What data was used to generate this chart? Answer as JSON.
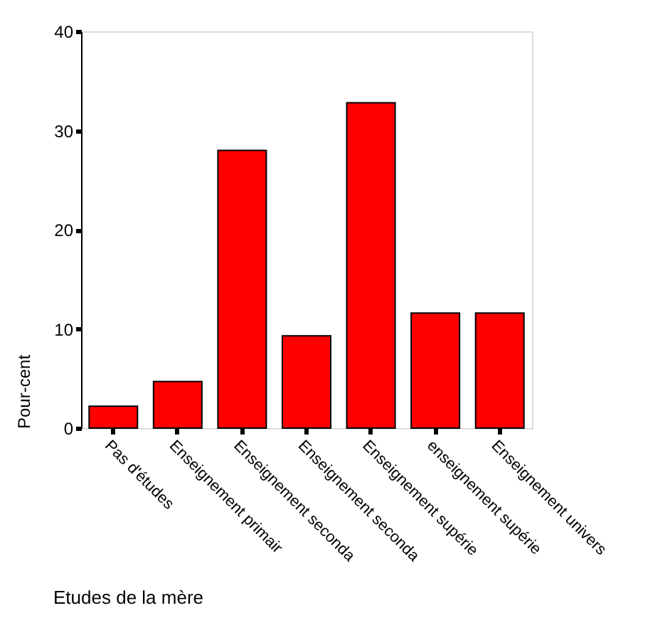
{
  "chart_data": {
    "type": "bar",
    "xlabel": "Etudes de la mère",
    "ylabel": "Pour-cent",
    "categories": [
      "Pas d'études",
      "Enseignement primair",
      "Enseignement seconda",
      "Enseignement seconda",
      "Enseignement supérie",
      "enseignement supérie",
      "Enseignement univers"
    ],
    "values": [
      2.2,
      4.7,
      28.0,
      9.3,
      32.8,
      11.6,
      11.6
    ],
    "color": "#ff0000",
    "ylim": [
      0,
      40
    ],
    "yticks": [
      0,
      10,
      20,
      30,
      40
    ],
    "grid": false
  }
}
